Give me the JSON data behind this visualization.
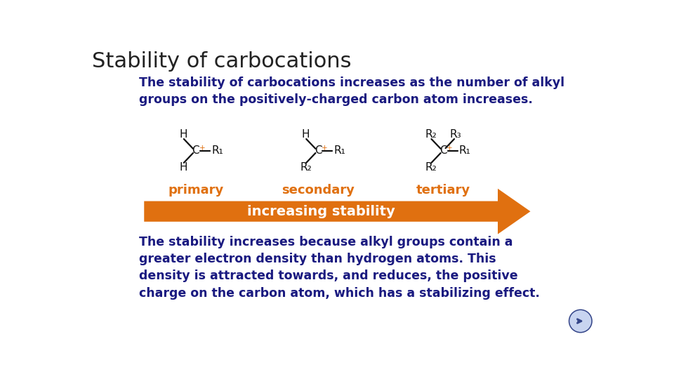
{
  "title": "Stability of carbocations",
  "title_color": "#222222",
  "title_fontsize": 22,
  "bg_color": "#ffffff",
  "intro_text": "The stability of carbocations increases as the number of alkyl\ngroups on the positively-charged carbon atom increases.",
  "intro_color": "#1a1a80",
  "intro_fontsize": 12.5,
  "label_primary": "primary",
  "label_secondary": "secondary",
  "label_tertiary": "tertiary",
  "label_color": "#e07010",
  "label_fontsize": 13,
  "arrow_text": "increasing stability",
  "arrow_color": "#e07010",
  "arrow_text_color": "#ffffff",
  "arrow_fontsize": 14,
  "body_text": "The stability increases because alkyl groups contain a\ngreater electron density than hydrogen atoms. This\ndensity is attracted towards, and reduces, the positive\ncharge on the carbon atom, which has a stabilizing effect.",
  "body_color": "#1a1a80",
  "body_fontsize": 12.5,
  "struct_color": "#111111",
  "struct_fontsize": 11,
  "plus_color": "#e07010",
  "nav_face": "#c8d4f0",
  "nav_edge": "#3355aa"
}
